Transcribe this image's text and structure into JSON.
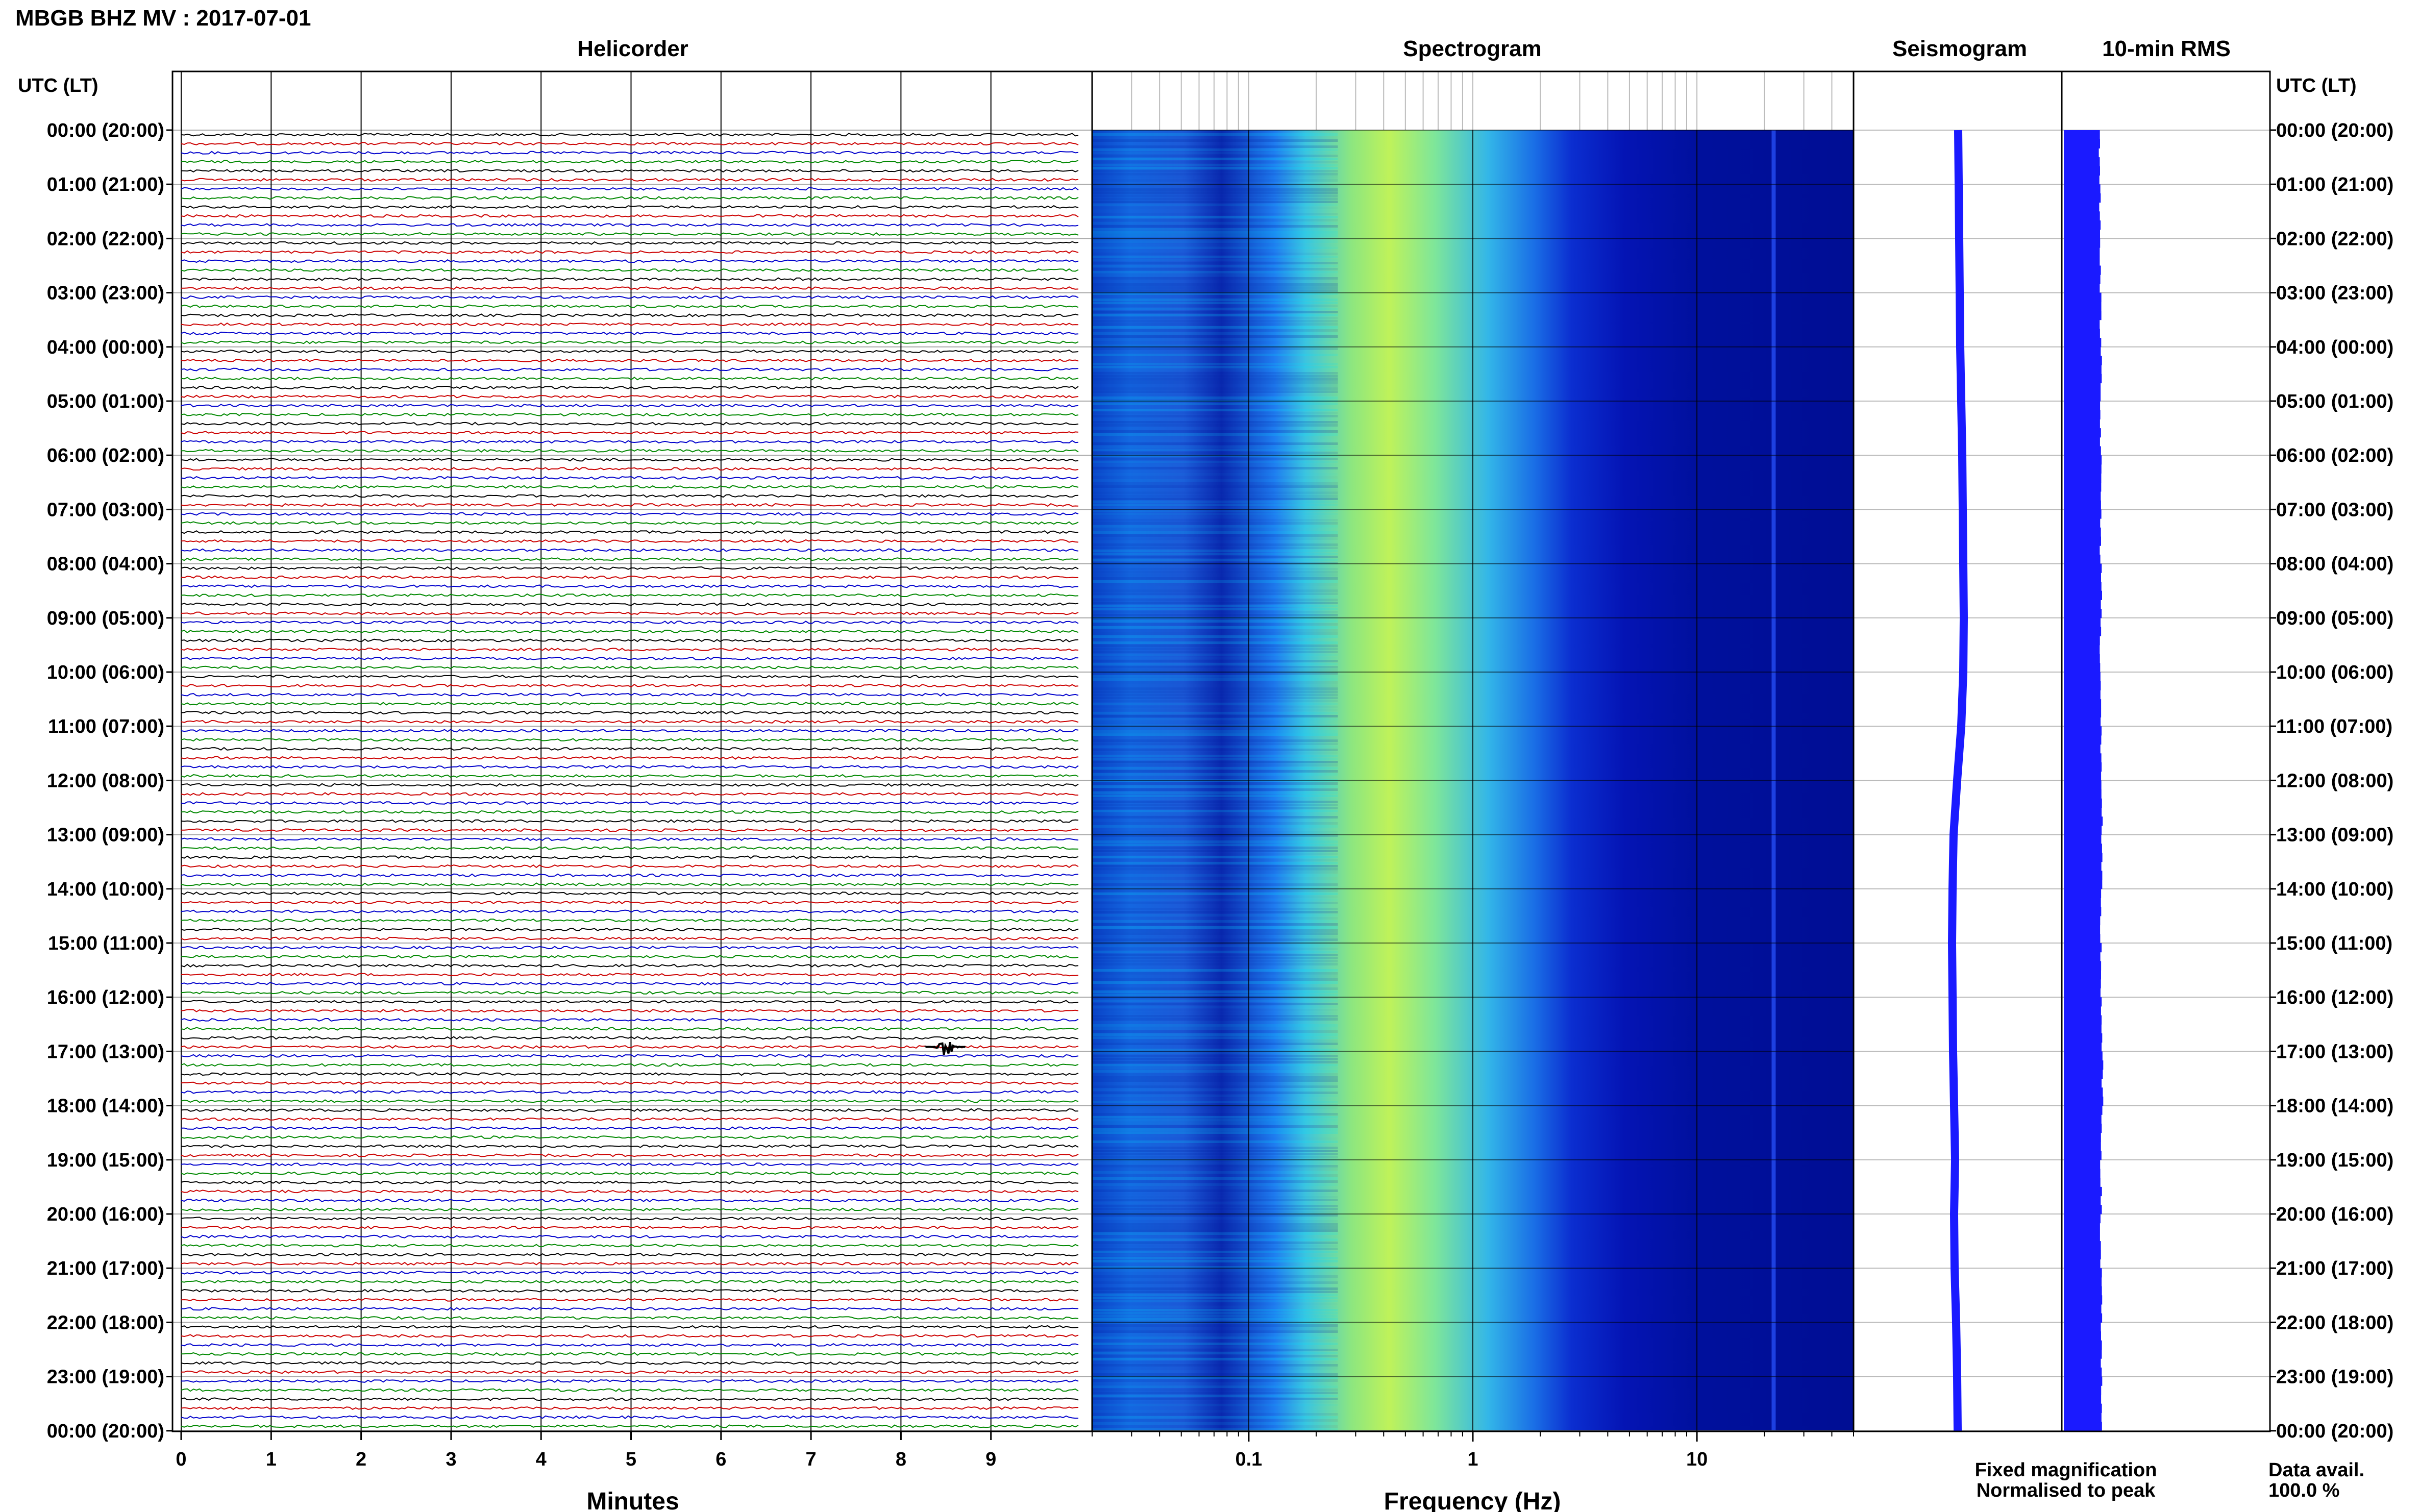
{
  "header": {
    "title": "MBGB BHZ MV : 2017-07-01",
    "utc_label": "UTC (LT)"
  },
  "panels": {
    "helicorder": "Helicorder",
    "spectrogram": "Spectrogram",
    "seismogram": "Seismogram",
    "rms": "10-min RMS"
  },
  "footer": {
    "xlabel_minutes": "Minutes",
    "xlabel_frequency": "Frequency (Hz)",
    "legend_fixed": "Fixed magnification",
    "legend_normalised": "Normalised to peak",
    "data_avail_label": "Data avail.",
    "data_avail_value": "100.0 %"
  },
  "colors": {
    "trace_black": "#000000",
    "trace_red": "#cc0000",
    "trace_blue": "#0000cc",
    "trace_green": "#008800",
    "legend_fixed": "#1a1aff",
    "legend_normalised": "#ff0000",
    "seismogram": "#1a1aff",
    "rms": "#1a1aff",
    "spec_background": "#00008f"
  },
  "chart_data": {
    "type": "helicorder",
    "station": "MBGB",
    "channel": "BHZ",
    "network": "MV",
    "date": "2017-07-01",
    "time_labels": [
      "00:00 (20:00)",
      "01:00 (21:00)",
      "02:00 (22:00)",
      "03:00 (23:00)",
      "04:00 (00:00)",
      "05:00 (01:00)",
      "06:00 (02:00)",
      "07:00 (03:00)",
      "08:00 (04:00)",
      "09:00 (05:00)",
      "10:00 (06:00)",
      "11:00 (07:00)",
      "12:00 (08:00)",
      "13:00 (09:00)",
      "14:00 (10:00)",
      "15:00 (11:00)",
      "16:00 (12:00)",
      "17:00 (13:00)",
      "18:00 (14:00)",
      "19:00 (15:00)",
      "20:00 (16:00)",
      "21:00 (17:00)",
      "22:00 (18:00)",
      "23:00 (19:00)",
      "00:00 (20:00)"
    ],
    "helicorder": {
      "minute_ticks": [
        "0",
        "1",
        "2",
        "3",
        "4",
        "5",
        "6",
        "7",
        "8",
        "9"
      ],
      "xlim": [
        0,
        10
      ],
      "lines_per_hour": 6,
      "trace_color_cycle": [
        "black",
        "red",
        "blue",
        "green"
      ],
      "event": {
        "hour": 16,
        "line": 5,
        "minute": 8.5
      }
    },
    "spectrogram": {
      "xscale": "log",
      "xlim": [
        0.02,
        50
      ],
      "tick_labels": [
        "0.1",
        "1",
        "10"
      ],
      "tick_values": [
        0.1,
        1,
        10
      ],
      "colormap": "jet",
      "peak_band_hz": [
        0.25,
        0.6
      ],
      "persistent_line_hz": 22
    },
    "seismogram": {
      "series_color": "blue",
      "offsets": [
        0.1,
        0.15,
        0.2,
        0.25,
        0.3,
        0.4,
        0.5,
        0.55,
        0.6,
        0.65,
        0.6,
        0.4,
        0.0,
        -0.35,
        -0.45,
        -0.5,
        -0.45,
        -0.4,
        -0.3,
        -0.2,
        -0.3,
        -0.25,
        -0.1,
        0.0,
        0.05
      ]
    },
    "rms": {
      "series_color": "blue",
      "values": [
        0.78,
        0.79,
        0.8,
        0.8,
        0.82,
        0.8,
        0.81,
        0.8,
        0.82,
        0.8,
        0.8,
        0.81,
        0.83,
        0.82,
        0.8,
        0.81,
        0.82,
        0.84,
        0.82,
        0.81,
        0.8,
        0.83,
        0.81,
        0.82
      ]
    }
  }
}
